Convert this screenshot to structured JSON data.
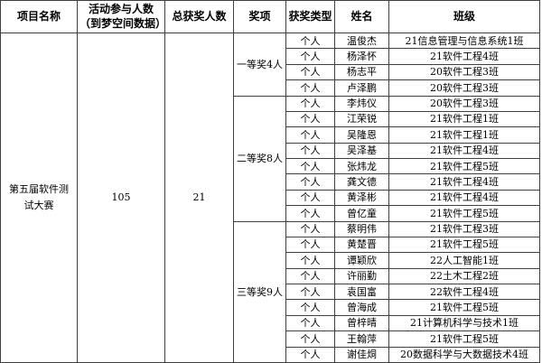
{
  "table": {
    "headers": {
      "project": "项目名称",
      "participants": "活动参与人数\n（到梦空间数据）",
      "total_winners": "总获奖人数",
      "award": "奖项",
      "award_type": "获奖类型",
      "name": "姓名",
      "class": "班级"
    },
    "project": {
      "name": "第五届软件测试大赛",
      "participants": "105",
      "total_winners": "21"
    },
    "award_groups": [
      {
        "label": "一等奖4人",
        "rows": 4
      },
      {
        "label": "二等奖8人",
        "rows": 8
      },
      {
        "label": "三等奖9人",
        "rows": 9
      }
    ],
    "winners": [
      {
        "type": "个人",
        "name": "温俊杰",
        "class": "21信息管理与信息系统1班"
      },
      {
        "type": "个人",
        "name": "杨泽怀",
        "class": "21软件工程4班"
      },
      {
        "type": "个人",
        "name": "杨志平",
        "class": "20软件工程3班"
      },
      {
        "type": "个人",
        "name": "卢泽鹏",
        "class": "20软件工程3班"
      },
      {
        "type": "个人",
        "name": "李炜仪",
        "class": "20软件工程3班"
      },
      {
        "type": "个人",
        "name": "江荣锐",
        "class": "21软件工程1班"
      },
      {
        "type": "个人",
        "name": "吴隆恩",
        "class": "21软件工程1班"
      },
      {
        "type": "个人",
        "name": "吴泽基",
        "class": "21软件工程4班"
      },
      {
        "type": "个人",
        "name": "张炜龙",
        "class": "21软件工程5班"
      },
      {
        "type": "个人",
        "name": "龚文德",
        "class": "21软件工程4班"
      },
      {
        "type": "个人",
        "name": "黄泽彬",
        "class": "21软件工程4班"
      },
      {
        "type": "个人",
        "name": "曾亿童",
        "class": "21软件工程5班"
      },
      {
        "type": "个人",
        "name": "蔡明伟",
        "class": "21软件工程3班"
      },
      {
        "type": "个人",
        "name": "黄楚晋",
        "class": "21软件工程5班"
      },
      {
        "type": "个人",
        "name": "谭颖欣",
        "class": "22人工智能1班"
      },
      {
        "type": "个人",
        "name": "许丽勤",
        "class": "22土木工程2班"
      },
      {
        "type": "个人",
        "name": "袁国富",
        "class": "22软件工程4班"
      },
      {
        "type": "个人",
        "name": "曾海成",
        "class": "21软件工程5班"
      },
      {
        "type": "个人",
        "name": "曾梓晴",
        "class": "21计算机科学与技术1班"
      },
      {
        "type": "个人",
        "name": "王翰萍",
        "class": "21软件工程5班"
      },
      {
        "type": "个人",
        "name": "谢佳烔",
        "class": "20数据科学与大数据技术4班"
      }
    ]
  },
  "colors": {
    "background": "#ffffff",
    "border": "#404040",
    "text": "#000000"
  }
}
